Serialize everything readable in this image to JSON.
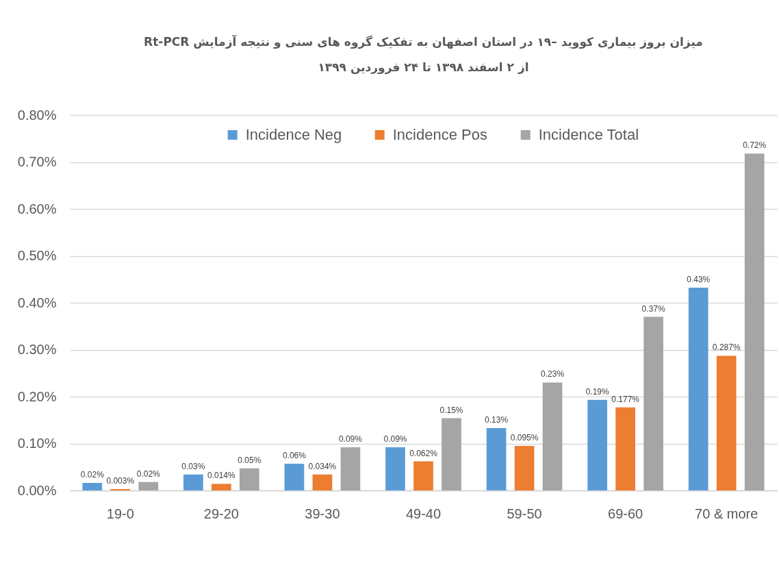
{
  "chart_data": {
    "type": "bar",
    "title": "میزان بروز بیماری کووید –۱۹ در استان اصفهان به تفکیک گروه های سنی و نتیجه آزمایش Rt-PCR",
    "subtitle": "از ۲ اسفند ۱۳۹۸ تا ۲۴ فروردین ۱۳۹۹",
    "categories": [
      "19-0",
      "29-20",
      "39-30",
      "49-40",
      "59-50",
      "69-60",
      "70 & more"
    ],
    "series": [
      {
        "name": "Incidence Neg",
        "color": "#5b9bd5",
        "values": [
          0.016,
          0.034,
          0.057,
          0.092,
          0.133,
          0.193,
          0.432
        ],
        "value_labels": [
          "0.02%",
          "0.03%",
          "0.06%",
          "0.09%",
          "0.13%",
          "0.19%",
          "0.43%"
        ]
      },
      {
        "name": "Incidence Pos",
        "color": "#ed7d31",
        "values": [
          0.003,
          0.014,
          0.034,
          0.062,
          0.095,
          0.177,
          0.287
        ],
        "value_labels": [
          "0.003%",
          "0.014%",
          "0.034%",
          "0.062%",
          "0.095%",
          "0.177%",
          "0.287%"
        ]
      },
      {
        "name": "Incidence Total",
        "color": "#a5a5a5",
        "values": [
          0.018,
          0.047,
          0.092,
          0.154,
          0.23,
          0.37,
          0.718
        ],
        "value_labels": [
          "0.02%",
          "0.05%",
          "0.09%",
          "0.15%",
          "0.23%",
          "0.37%",
          "0.72%"
        ]
      }
    ],
    "ylim": [
      0,
      0.8
    ],
    "yticks": [
      {
        "value": 0,
        "label": "0.00%"
      },
      {
        "value": 0.1,
        "label": "0.10%"
      },
      {
        "value": 0.2,
        "label": "0.20%"
      },
      {
        "value": 0.3,
        "label": "0.30%"
      },
      {
        "value": 0.4,
        "label": "0.40%"
      },
      {
        "value": 0.5,
        "label": "0.50%"
      },
      {
        "value": 0.6,
        "label": "0.60%"
      },
      {
        "value": 0.7,
        "label": "0.70%"
      },
      {
        "value": 0.8,
        "label": "0.80%"
      }
    ],
    "grid": "y",
    "legend": "top"
  }
}
